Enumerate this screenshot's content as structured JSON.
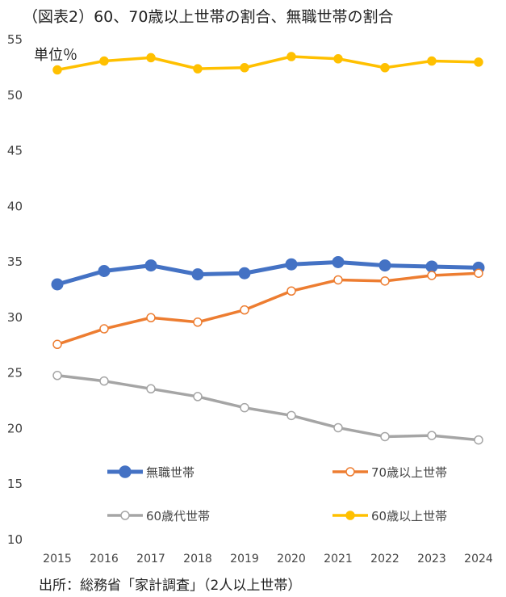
{
  "chart_data": {
    "type": "line",
    "title": "（図表2）60、70歳以上世帯の割合、無職世帯の割合",
    "unit_label": "単位％",
    "source": "出所：総務省「家計調査」（2人以上世帯）",
    "xlabel": "",
    "ylabel": "単位％",
    "ylim": [
      10,
      55
    ],
    "yticks": [
      10,
      15,
      20,
      25,
      30,
      35,
      40,
      45,
      50,
      55
    ],
    "grid": false,
    "legend_placement": "bottom-inside",
    "categories": [
      "2015",
      "2016",
      "2017",
      "2018",
      "2019",
      "2020",
      "2021",
      "2022",
      "2023",
      "2024"
    ],
    "series": [
      {
        "name": "無職世帯",
        "color": "#4472C4",
        "marker": "filled",
        "values": [
          32.9,
          34.1,
          34.6,
          33.8,
          33.9,
          34.7,
          34.9,
          34.6,
          34.5,
          34.4
        ]
      },
      {
        "name": "70歳以上世帯",
        "color": "#ED7D31",
        "marker": "hollow",
        "values": [
          27.5,
          28.9,
          29.9,
          29.5,
          30.6,
          32.3,
          33.3,
          33.2,
          33.7,
          33.9
        ]
      },
      {
        "name": "60歳代世帯",
        "color": "#A5A5A5",
        "marker": "hollow",
        "values": [
          24.7,
          24.2,
          23.5,
          22.8,
          21.8,
          21.1,
          20.0,
          19.2,
          19.3,
          18.9
        ]
      },
      {
        "name": "60歳以上世帯",
        "color": "#FFC000",
        "marker": "filled",
        "values": [
          52.2,
          53.0,
          53.3,
          52.3,
          52.4,
          53.4,
          53.2,
          52.4,
          53.0,
          52.9
        ]
      }
    ]
  }
}
